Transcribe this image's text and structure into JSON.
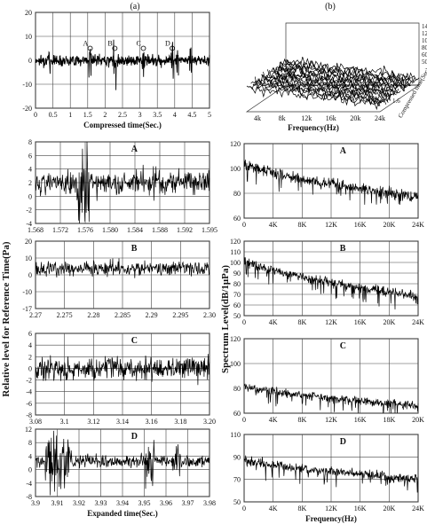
{
  "figure": {
    "panel_a_label": "(a)",
    "panel_b_label": "(b)",
    "left_ylabel": "Relative level for Reference Time(Pa)",
    "right_ylabel": "Spectrum Level(dB/1μPa)"
  },
  "chart_data": [
    {
      "id": "a",
      "type": "line",
      "label": "(a)",
      "xlabel": "Compressed time(Sec.)",
      "ylabel": "",
      "xlim": [
        0,
        5
      ],
      "ylim": [
        -20,
        20
      ],
      "x_ticks": [
        "0",
        "0.5",
        "1",
        "1.5",
        "2",
        "2.5",
        "3",
        "3.5",
        "4",
        "4.5",
        "5"
      ],
      "y_ticks": [
        "20",
        "10",
        "0",
        "-10",
        "-20"
      ],
      "grid": true,
      "markers": [
        {
          "name": "A",
          "x": 1.57
        },
        {
          "name": "B",
          "x": 2.28
        },
        {
          "name": "C",
          "x": 3.1
        },
        {
          "name": "D",
          "x": 3.93
        }
      ],
      "series": [
        {
          "values_summary": "noise band centered near 0, amplitude mostly within ±5 Pa, spikes to about ±10 Pa at markers"
        }
      ]
    },
    {
      "id": "b",
      "type": "waterfall",
      "label": "(b)",
      "xlabel": "Frequency(Hz)",
      "ylabel": "Compressed time(Sec)",
      "zlabel": "(dB/1μPa)",
      "x_ticks": [
        "4k",
        "8k",
        "12k",
        "16k",
        "20k",
        "24k"
      ],
      "y_ticks": [
        "1.6",
        "3.7"
      ],
      "z_ticks": [
        "140",
        "120",
        "100",
        "80",
        "60",
        "50"
      ]
    },
    {
      "id": "left-A",
      "type": "line",
      "title": "A",
      "xlim": [
        1.568,
        1.5955
      ],
      "ylim": [
        -4,
        8
      ],
      "x_ticks": [
        "1.568",
        "1.572",
        "1.576",
        "1.580",
        "1.584",
        "1.588",
        "1.592",
        "1.595"
      ],
      "y_ticks": [
        "8",
        "6",
        "4",
        "2",
        "0",
        "-2",
        "-4"
      ],
      "baseline": 2,
      "noise": 1.2,
      "bursts": [
        [
          1.5745,
          1.5765,
          5
        ],
        [
          1.5865,
          1.5875,
          2
        ]
      ]
    },
    {
      "id": "left-B",
      "type": "line",
      "title": "B",
      "xlim": [
        2.27,
        2.3
      ],
      "ylim": [
        -17,
        20
      ],
      "x_ticks": [
        "2.27",
        "2.275",
        "2.28",
        "2.285",
        "2.29",
        "2.295",
        "2.30"
      ],
      "y_ticks": [
        "20",
        "10",
        "0",
        "-10",
        "-17"
      ],
      "baseline": 5,
      "noise": 3
    },
    {
      "id": "left-C",
      "type": "line",
      "title": "C",
      "xlim": [
        3.06,
        3.2
      ],
      "ylim": [
        -8,
        6
      ],
      "x_ticks": [
        "3.08",
        "3.1",
        "3.12",
        "3.14",
        "3.16",
        "3.18",
        "3.20"
      ],
      "y_ticks": [
        "6",
        "4",
        "2",
        "0",
        "-2",
        "-4",
        "-6",
        "-8"
      ],
      "baseline": 0,
      "noise": 1.4
    },
    {
      "id": "left-D",
      "type": "line",
      "title": "D",
      "xlabel": "Expanded time(Sec.)",
      "xlim": [
        3.895,
        3.99
      ],
      "ylim": [
        -8,
        12
      ],
      "x_ticks": [
        "3.9",
        "3.91",
        "3.92",
        "3.93",
        "3.94",
        "3.95",
        "3.96",
        "3.97",
        "3.98"
      ],
      "y_ticks": [
        "12",
        "8",
        "4",
        "0",
        "-4",
        "-8"
      ],
      "baseline": 2.5,
      "noise": 1.3,
      "bursts": [
        [
          3.9,
          3.915,
          6
        ],
        [
          3.955,
          3.96,
          5
        ],
        [
          3.97,
          3.975,
          5
        ]
      ]
    },
    {
      "id": "right-A",
      "type": "line",
      "title": "A",
      "xlim": [
        0,
        26000
      ],
      "ylim": [
        60,
        120
      ],
      "x_ticks": [
        "0",
        "4K",
        "8K",
        "12K",
        "16K",
        "20K",
        "24K"
      ],
      "y_ticks": [
        "120",
        "100",
        "80",
        "60"
      ],
      "start_level": 104,
      "end_level": 77,
      "noise": 5
    },
    {
      "id": "right-B",
      "type": "line",
      "title": "B",
      "xlim": [
        0,
        26000
      ],
      "ylim": [
        50,
        120
      ],
      "x_ticks": [
        "0",
        "4K",
        "8K",
        "12K",
        "16K",
        "20K",
        "24K"
      ],
      "y_ticks": [
        "120",
        "110",
        "100",
        "90",
        "80",
        "70",
        "60",
        "50"
      ],
      "start_level": 103,
      "end_level": 68,
      "noise": 5
    },
    {
      "id": "right-C",
      "type": "line",
      "title": "C",
      "xlim": [
        0,
        22000
      ],
      "ylim": [
        60,
        120
      ],
      "x_ticks": [
        "0",
        "4K",
        "8K",
        "12K",
        "16K",
        "18K",
        "20K"
      ],
      "y_ticks": [
        "120",
        "100",
        "80",
        "60"
      ],
      "start_level": 82,
      "end_level": 66,
      "noise": 4
    },
    {
      "id": "right-D",
      "type": "line",
      "title": "D",
      "xlabel": "Frequency(Hz)",
      "xlim": [
        0,
        26000
      ],
      "ylim": [
        50,
        110
      ],
      "x_ticks": [
        "0",
        "4K",
        "8K",
        "12K",
        "16K",
        "20K",
        "24K"
      ],
      "y_ticks": [
        "110",
        "90",
        "70",
        "50"
      ],
      "start_level": 88,
      "end_level": 70,
      "noise": 5
    }
  ]
}
